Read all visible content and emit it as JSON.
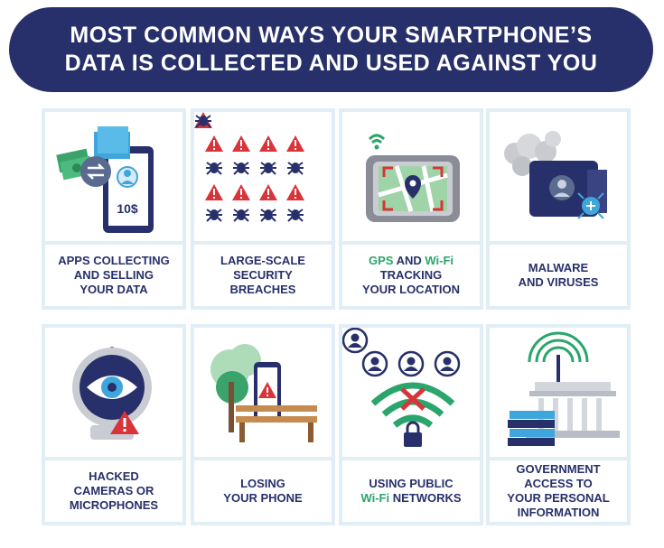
{
  "title": {
    "line1": "MOST COMMON WAYS YOUR SMARTPHONE’S",
    "line2": "DATA IS COLLECTED AND USED AGAINST YOU"
  },
  "colors": {
    "navy": "#27306a",
    "green": "#2aa56b",
    "red": "#d9343a",
    "card_bg": "#e1eef5"
  },
  "cards": [
    {
      "icon": "phone-money-icon",
      "lines": [
        "APPS COLLECTING",
        "AND SELLING",
        "YOUR DATA"
      ],
      "screen_text": "10$"
    },
    {
      "icon": "warning-bugs-icon",
      "lines": [
        "LARGE-SCALE",
        "SECURITY",
        "BREACHES"
      ]
    },
    {
      "icon": "gps-map-icon",
      "line1_a": "GPS",
      "line1_b": " AND ",
      "line1_c": "Wi-Fi",
      "lines": [
        "TRACKING",
        "YOUR LOCATION"
      ]
    },
    {
      "icon": "malware-virus-icon",
      "lines": [
        "MALWARE",
        "AND VIRUSES"
      ]
    },
    {
      "icon": "webcam-eye-icon",
      "lines": [
        "HACKED",
        "CAMERAS OR",
        "MICROPHONES"
      ]
    },
    {
      "icon": "lost-phone-icon",
      "lines": [
        "LOSING",
        "YOUR PHONE"
      ]
    },
    {
      "icon": "public-wifi-icon",
      "line1": "USING PUBLIC",
      "line2_a": "Wi-Fi",
      "line2_b": " NETWORKS"
    },
    {
      "icon": "government-building-icon",
      "lines": [
        "GOVERNMENT",
        "ACCESS TO",
        "YOUR PERSONAL",
        "INFORMATION"
      ]
    }
  ]
}
